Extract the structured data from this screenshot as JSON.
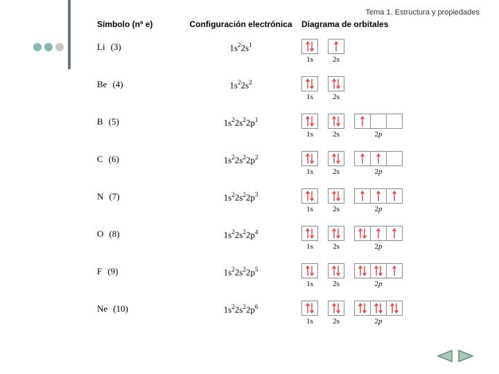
{
  "header": {
    "title": "Tema 1. Estructura y propiedades"
  },
  "dots": {
    "colors": [
      "#8bb5b0",
      "#8bb5b0",
      "#c8c8c0"
    ]
  },
  "columns": {
    "symbol": "Símbolo (nº e)",
    "config": "Configuración electrónica",
    "diagram": "Diagrama de orbitales"
  },
  "arrow_color": "#c94848",
  "box_border": "#8a8a8a",
  "nav_stroke": "#6a8a7a",
  "nav_fill": "#a8c8b8",
  "rows": [
    {
      "sym": "Li",
      "n": "(3)",
      "cfg": "1s<sup>2</sup>2s<sup>1</sup>",
      "orbitals": [
        {
          "label": "1s",
          "boxes": [
            "pair"
          ]
        },
        {
          "label": "2s",
          "boxes": [
            "up"
          ]
        }
      ]
    },
    {
      "sym": "Be",
      "n": "(4)",
      "cfg": "1s<sup>2</sup>2s<sup>2</sup>",
      "orbitals": [
        {
          "label": "1s",
          "boxes": [
            "pair"
          ]
        },
        {
          "label": "2s",
          "boxes": [
            "pair"
          ]
        }
      ]
    },
    {
      "sym": "B",
      "n": "(5)",
      "cfg": "1s<sup>2</sup>2s<sup>2</sup>2p<sup>1</sup>",
      "orbitals": [
        {
          "label": "1s",
          "boxes": [
            "pair"
          ]
        },
        {
          "label": "2s",
          "boxes": [
            "pair"
          ]
        },
        {
          "label": "2p",
          "boxes": [
            "up",
            "",
            ""
          ]
        }
      ]
    },
    {
      "sym": "C",
      "n": "(6)",
      "cfg": "1s<sup>2</sup>2s<sup>2</sup>2p<sup>2</sup>",
      "orbitals": [
        {
          "label": "1s",
          "boxes": [
            "pair"
          ]
        },
        {
          "label": "2s",
          "boxes": [
            "pair"
          ]
        },
        {
          "label": "2p",
          "boxes": [
            "up",
            "up",
            ""
          ]
        }
      ]
    },
    {
      "sym": "N",
      "n": "(7)",
      "cfg": "1s<sup>2</sup>2s<sup>2</sup>2p<sup>3</sup>",
      "orbitals": [
        {
          "label": "1s",
          "boxes": [
            "pair"
          ]
        },
        {
          "label": "2s",
          "boxes": [
            "pair"
          ]
        },
        {
          "label": "2p",
          "boxes": [
            "up",
            "up",
            "up"
          ]
        }
      ]
    },
    {
      "sym": "O",
      "n": "(8)",
      "cfg": "1s<sup>2</sup>2s<sup>2</sup>2p<sup>4</sup>",
      "orbitals": [
        {
          "label": "1s",
          "boxes": [
            "pair"
          ]
        },
        {
          "label": "2s",
          "boxes": [
            "pair"
          ]
        },
        {
          "label": "2p",
          "boxes": [
            "pair",
            "up",
            "up"
          ]
        }
      ]
    },
    {
      "sym": "F",
      "n": "(9)",
      "cfg": "1s<sup>2</sup>2s<sup>2</sup>2p<sup>5</sup>",
      "orbitals": [
        {
          "label": "1s",
          "boxes": [
            "pair"
          ]
        },
        {
          "label": "2s",
          "boxes": [
            "pair"
          ]
        },
        {
          "label": "2p",
          "boxes": [
            "pair",
            "pair",
            "up"
          ]
        }
      ]
    },
    {
      "sym": "Ne",
      "n": "(10)",
      "cfg": "1s<sup>2</sup>2s<sup>2</sup>2p<sup>6</sup>",
      "orbitals": [
        {
          "label": "1s",
          "boxes": [
            "pair"
          ]
        },
        {
          "label": "2s",
          "boxes": [
            "pair"
          ]
        },
        {
          "label": "2p",
          "boxes": [
            "pair",
            "pair",
            "pair"
          ]
        }
      ]
    }
  ]
}
